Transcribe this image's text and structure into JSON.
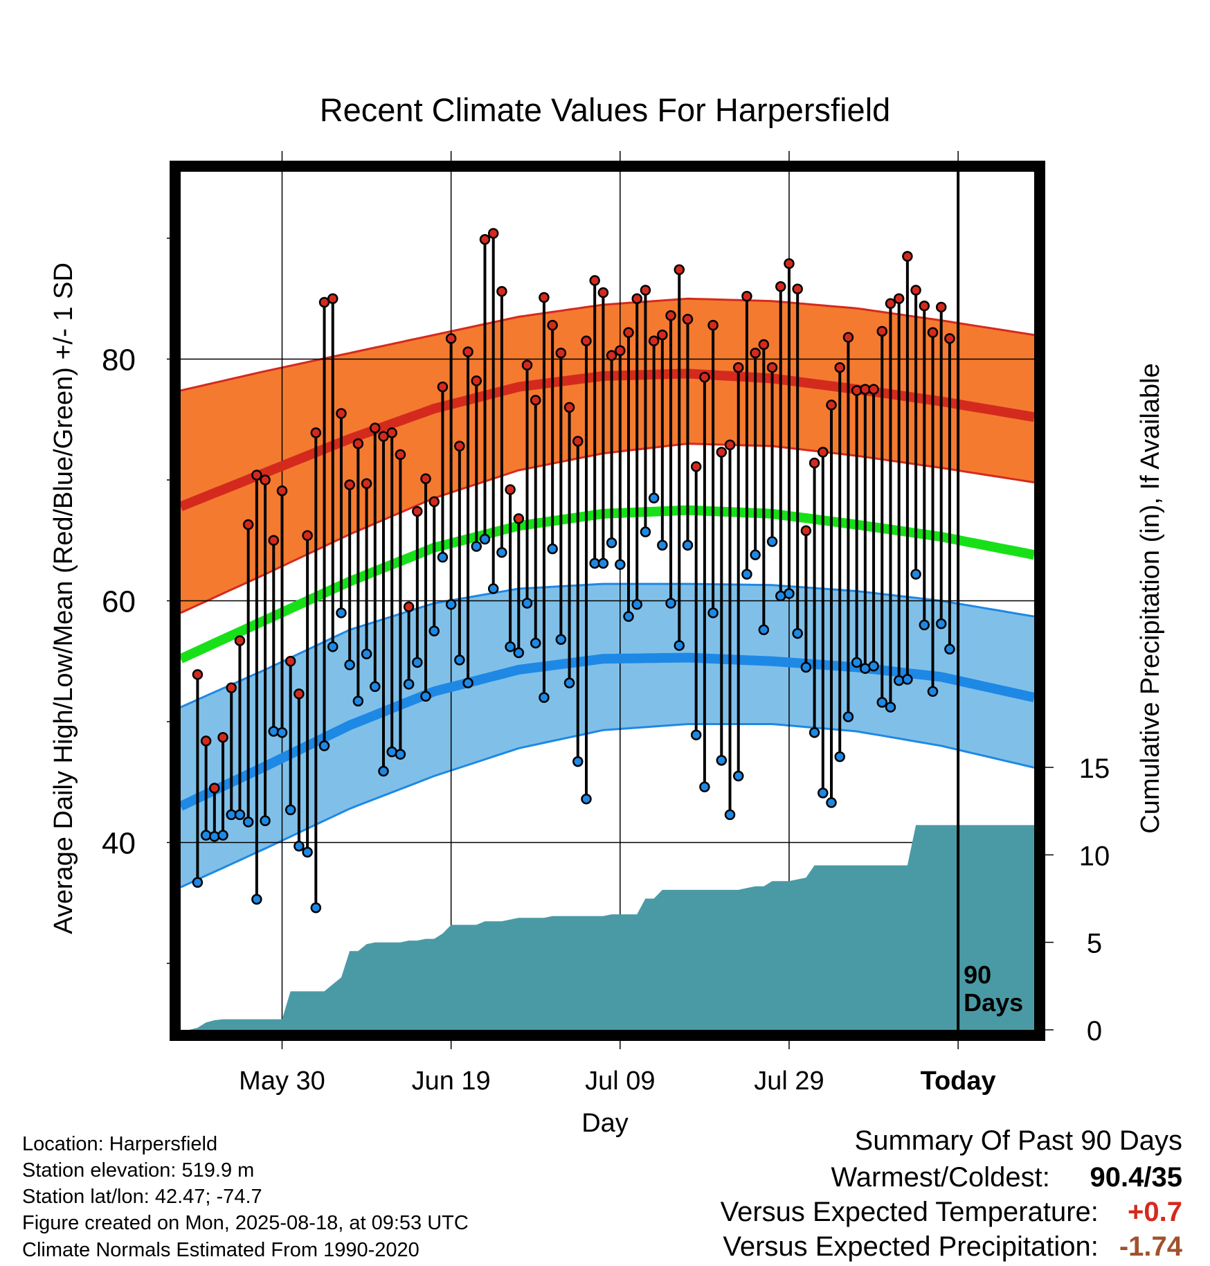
{
  "chart_data": {
    "type": "line",
    "title": "Recent Climate Values For Harpersfield",
    "xlabel": "Day",
    "ylabel": "Average Daily High/Low/Mean (Red/Blue/Green) +/- 1 SD",
    "y2label": "Cumulative Precipitation (in), If Available",
    "x_ticks": [
      {
        "day": 12,
        "label": "May 30"
      },
      {
        "day": 32,
        "label": "Jun 19"
      },
      {
        "day": 52,
        "label": "Jul 09"
      },
      {
        "day": 72,
        "label": "Jul 29"
      },
      {
        "day": 92,
        "label": "Today"
      }
    ],
    "y_ticks": [
      40,
      60,
      80
    ],
    "y_minor_ticks": [
      30,
      50,
      70,
      90
    ],
    "y2_ticks": [
      0,
      5,
      10,
      15
    ],
    "ylim": [
      24.5,
      95.5
    ],
    "y2lim": [
      0,
      15
    ],
    "xlim": [
      0,
      101
    ],
    "today_day": 92,
    "window_label_line1": "90",
    "window_label_line2": "Days",
    "normals": {
      "days": [
        0,
        10,
        20,
        30,
        40,
        50,
        60,
        70,
        80,
        90,
        101
      ],
      "high_mean": [
        67.8,
        70.6,
        73.4,
        75.9,
        77.7,
        78.6,
        78.8,
        78.4,
        77.5,
        76.5,
        75.2
      ],
      "high_upper": [
        77.4,
        79.0,
        80.5,
        82.0,
        83.5,
        84.5,
        85.0,
        84.8,
        84.2,
        83.2,
        82.0
      ],
      "high_lower": [
        59.0,
        62.2,
        65.5,
        68.5,
        70.8,
        72.2,
        73.0,
        72.8,
        72.0,
        71.0,
        69.8
      ],
      "mean": [
        55.2,
        58.4,
        61.6,
        64.4,
        66.2,
        67.2,
        67.5,
        67.2,
        66.3,
        65.3,
        63.8
      ],
      "low_mean": [
        43.0,
        46.3,
        49.7,
        52.5,
        54.3,
        55.2,
        55.3,
        55.0,
        54.5,
        53.7,
        52.0
      ],
      "low_upper": [
        51.2,
        54.3,
        57.6,
        59.8,
        61.0,
        61.4,
        61.4,
        61.3,
        60.8,
        60.0,
        58.7
      ],
      "low_lower": [
        36.3,
        39.5,
        42.8,
        45.5,
        47.8,
        49.3,
        49.8,
        49.8,
        49.2,
        48.0,
        46.2
      ]
    },
    "series": [
      {
        "name": "High",
        "color": "#d42a1e",
        "values": [
          53.9,
          48.4,
          44.5,
          48.7,
          52.8,
          56.7,
          66.3,
          70.4,
          70.0,
          65.0,
          69.1,
          55.0,
          52.3,
          65.4,
          73.9,
          84.7,
          85.0,
          75.5,
          69.6,
          73.0,
          69.7,
          74.3,
          73.6,
          73.9,
          72.1,
          59.5,
          67.4,
          70.1,
          68.2,
          77.7,
          81.7,
          72.8,
          80.6,
          78.2,
          89.9,
          90.4,
          85.6,
          69.2,
          66.8,
          79.5,
          76.6,
          85.1,
          82.8,
          80.5,
          76.0,
          73.2,
          81.5,
          86.5,
          85.5,
          80.3,
          80.7,
          82.2,
          85.0,
          85.7,
          81.5,
          82.0,
          83.6,
          87.4,
          83.3,
          71.1,
          78.5,
          82.8,
          72.3,
          72.9,
          79.3,
          85.2,
          80.5,
          81.2,
          79.3,
          86.0,
          87.9,
          85.8,
          65.8,
          71.4,
          72.3,
          76.2,
          79.3,
          81.8,
          77.4,
          77.5,
          77.5,
          82.3,
          84.6,
          85.0,
          88.5,
          85.7,
          84.4,
          82.2,
          84.3,
          81.7
        ]
      },
      {
        "name": "Low",
        "color": "#1e88e5",
        "values": [
          36.7,
          40.6,
          40.5,
          40.6,
          42.3,
          42.3,
          41.7,
          35.3,
          41.8,
          49.2,
          49.1,
          42.7,
          39.7,
          39.2,
          34.6,
          48.0,
          56.2,
          59.0,
          54.7,
          51.7,
          55.6,
          52.9,
          45.9,
          47.5,
          47.3,
          53.1,
          54.9,
          52.1,
          57.5,
          63.6,
          59.7,
          55.1,
          53.2,
          64.5,
          65.1,
          61.0,
          64.0,
          56.2,
          55.7,
          59.8,
          56.5,
          52.0,
          64.3,
          56.8,
          53.2,
          46.7,
          43.6,
          63.1,
          63.1,
          64.8,
          63.0,
          58.7,
          59.7,
          65.7,
          68.5,
          64.6,
          59.8,
          56.3,
          64.6,
          48.9,
          44.6,
          59.0,
          46.8,
          42.3,
          45.5,
          62.2,
          63.8,
          57.6,
          64.9,
          60.4,
          60.6,
          57.3,
          54.5,
          49.1,
          44.1,
          43.3,
          47.1,
          50.4,
          54.9,
          54.4,
          54.6,
          51.6,
          51.2,
          53.4,
          53.5,
          62.2,
          58.0,
          52.5,
          58.1,
          56.0
        ]
      }
    ],
    "precip_cumulative": {
      "color": "#4a9aa6",
      "days": [
        0,
        1,
        2,
        3,
        4,
        5,
        6,
        7,
        8,
        9,
        10,
        11,
        12,
        13,
        14,
        15,
        16,
        17,
        18,
        19,
        20,
        21,
        22,
        23,
        24,
        25,
        26,
        27,
        28,
        29,
        30,
        31,
        32,
        33,
        34,
        35,
        36,
        37,
        38,
        39,
        40,
        41,
        42,
        43,
        44,
        45,
        46,
        47,
        48,
        49,
        50,
        51,
        52,
        53,
        54,
        55,
        56,
        57,
        58,
        59,
        60,
        61,
        62,
        63,
        64,
        65,
        66,
        67,
        68,
        69,
        70,
        71,
        72,
        73,
        74,
        75,
        76,
        77,
        78,
        79,
        80,
        81,
        82,
        83,
        84,
        85,
        86,
        87,
        88,
        89,
        90,
        91,
        92,
        93,
        94,
        95,
        96,
        97,
        98,
        99,
        100,
        101
      ],
      "values": [
        0,
        0,
        0.12,
        0.42,
        0.55,
        0.6,
        0.6,
        0.6,
        0.6,
        0.6,
        0.6,
        0.6,
        0.6,
        2.2,
        2.2,
        2.2,
        2.2,
        2.2,
        2.6,
        3.0,
        4.5,
        4.5,
        4.9,
        5.0,
        5.0,
        5.0,
        5.0,
        5.1,
        5.1,
        5.2,
        5.2,
        5.5,
        6.0,
        6.0,
        6.0,
        6.0,
        6.2,
        6.2,
        6.2,
        6.3,
        6.4,
        6.4,
        6.4,
        6.4,
        6.5,
        6.5,
        6.5,
        6.5,
        6.5,
        6.5,
        6.5,
        6.6,
        6.6,
        6.6,
        6.6,
        7.5,
        7.5,
        8.0,
        8.0,
        8.0,
        8.0,
        8.0,
        8.0,
        8.0,
        8.0,
        8.0,
        8.0,
        8.1,
        8.2,
        8.2,
        8.5,
        8.5,
        8.5,
        8.6,
        8.7,
        9.4,
        9.4,
        9.4,
        9.4,
        9.4,
        9.4,
        9.4,
        9.4,
        9.4,
        9.4,
        9.4,
        9.4,
        11.7,
        11.7,
        11.7,
        11.7,
        11.7,
        11.7,
        11.7,
        11.7,
        11.7,
        11.7,
        11.7,
        11.7,
        11.7,
        11.7,
        11.7
      ]
    }
  },
  "station": {
    "location": "Location: Harpersfield",
    "elevation": "Station elevation: 519.9 m",
    "latlon": "Station lat/lon: 42.47; -74.7",
    "created": "Figure created on Mon, 2025-08-18, at 09:53 UTC",
    "normals": "Climate Normals Estimated From 1990-2020"
  },
  "summary": {
    "heading": "Summary Of Past 90 Days",
    "warmest_label": "Warmest/Coldest:",
    "warmest_value": "90.4/35",
    "temp_label": "Versus Expected Temperature:",
    "temp_value": "+0.7",
    "temp_color": "#d42a1e",
    "precip_label": "Versus Expected Precipitation:",
    "precip_value": "-1.74",
    "precip_color": "#a0522d"
  }
}
